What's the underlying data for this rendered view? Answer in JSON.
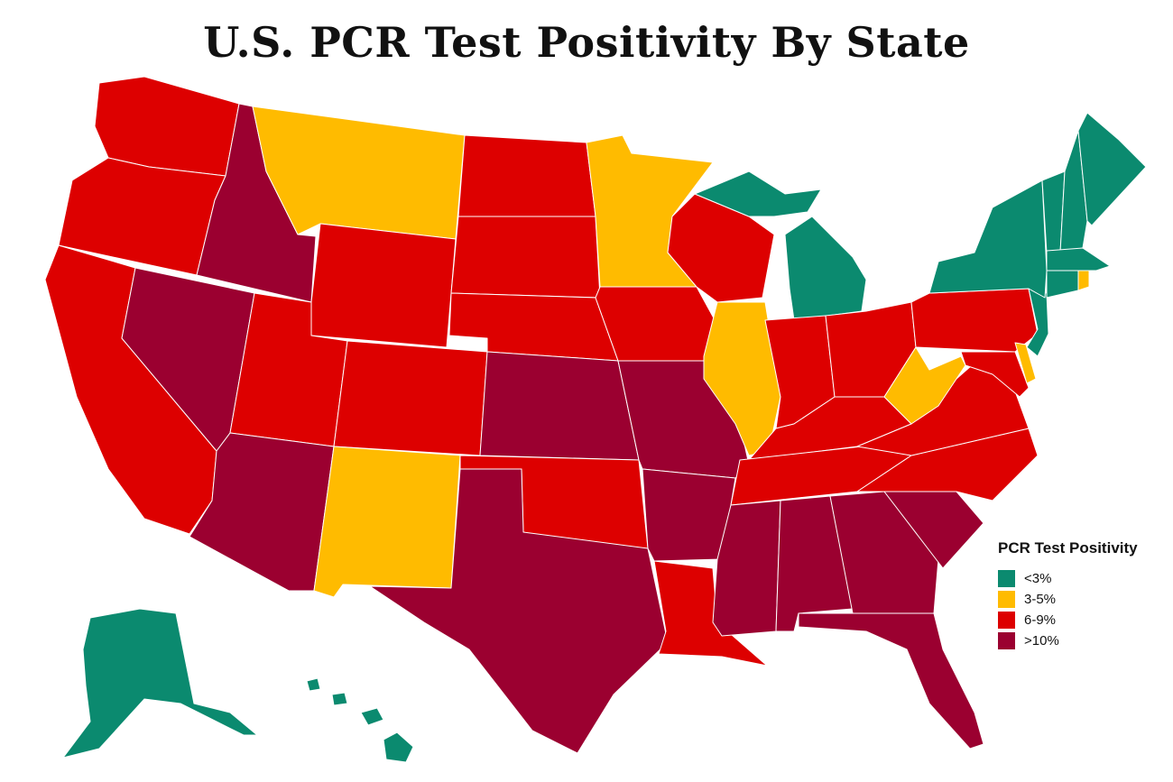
{
  "title": "U.S. PCR Test Positivity By State",
  "legend": {
    "title": "PCR Test Positivity",
    "items": [
      {
        "label": "<3%",
        "color": "#0b8a6f"
      },
      {
        "label": "3-5%",
        "color": "#ffbb00"
      },
      {
        "label": "6-9%",
        "color": "#dd0000"
      },
      {
        "label": ">10%",
        "color": "#9b0030"
      }
    ]
  },
  "chart_data": {
    "type": "map",
    "title": "U.S. PCR Test Positivity By State",
    "legend_placement": "bottom-right",
    "categories": [
      "<3%",
      "3-5%",
      "6-9%",
      ">10%"
    ],
    "states": {
      "<3%": [
        "Maine",
        "New Hampshire",
        "Vermont",
        "Massachusetts",
        "Connecticut",
        "New York",
        "New Jersey",
        "Michigan",
        "Alaska",
        "Hawaii"
      ],
      "3-5%": [
        "Montana",
        "Minnesota",
        "Illinois",
        "New Mexico",
        "West Virginia",
        "Delaware",
        "Rhode Island"
      ],
      "6-9%": [
        "Washington",
        "Oregon",
        "California",
        "Utah",
        "Wyoming",
        "Colorado",
        "North Dakota",
        "South Dakota",
        "Nebraska",
        "Iowa",
        "Wisconsin",
        "Indiana",
        "Ohio",
        "Pennsylvania",
        "Maryland",
        "Virginia",
        "North Carolina",
        "Kentucky",
        "Tennessee",
        "Oklahoma",
        "Louisiana"
      ],
      ">10%": [
        "Idaho",
        "Nevada",
        "Arizona",
        "Texas",
        "Kansas",
        "Missouri",
        "Arkansas",
        "Mississippi",
        "Alabama",
        "Georgia",
        "South Carolina",
        "Florida"
      ]
    }
  }
}
